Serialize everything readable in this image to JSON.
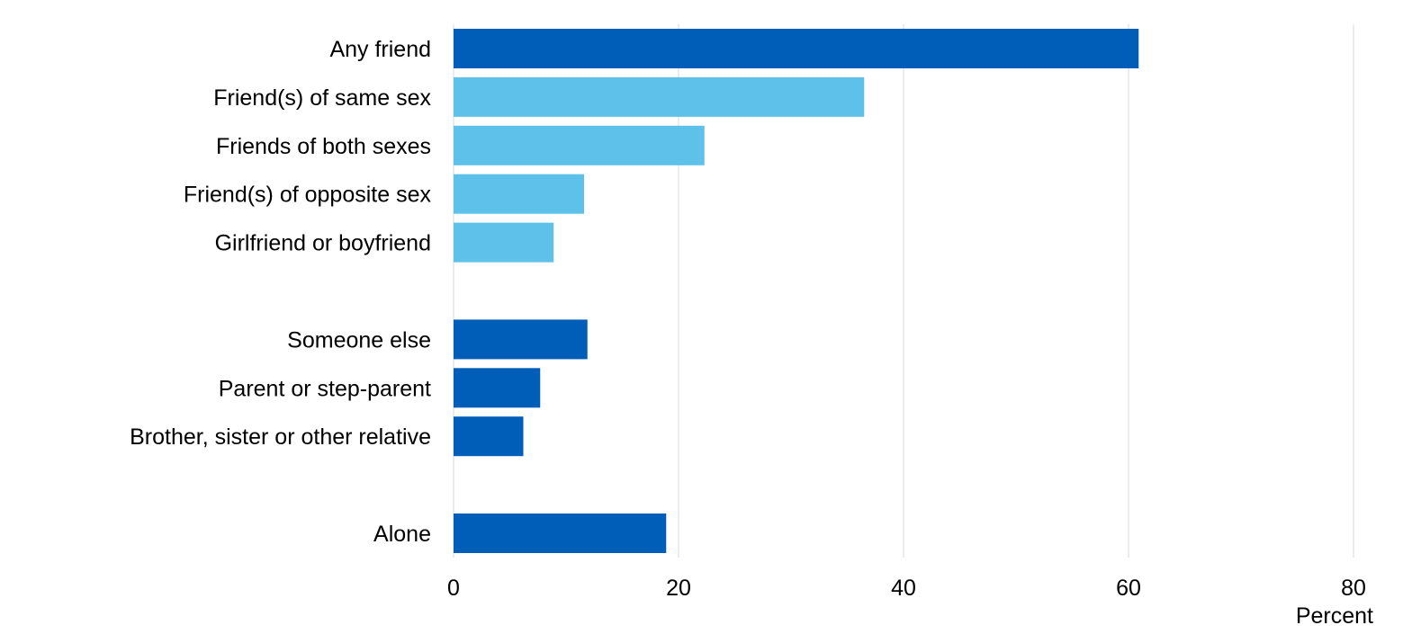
{
  "chart_data": {
    "type": "bar",
    "orientation": "horizontal",
    "categories": [
      "Any friend",
      "Friend(s) of same sex",
      "Friends of both sexes",
      "Friend(s) of opposite sex",
      "Girlfriend or boyfriend",
      "",
      "Someone else",
      "Parent or step-parent",
      "Brother, sister or other relative",
      "",
      "Alone"
    ],
    "values": [
      60.9,
      36.5,
      22.3,
      11.6,
      8.9,
      null,
      11.9,
      7.7,
      6.2,
      null,
      18.9
    ],
    "bar_colors": [
      "#005EB8",
      "#5EC1EA",
      "#5EC1EA",
      "#5EC1EA",
      "#5EC1EA",
      null,
      "#005EB8",
      "#005EB8",
      "#005EB8",
      null,
      "#005EB8"
    ],
    "xlim": [
      0,
      80
    ],
    "xticks": [
      0,
      20,
      40,
      60,
      80
    ],
    "xlabel": "Percent",
    "ylabel": "",
    "title": "",
    "grid": "vertical",
    "legend": "none"
  },
  "colors": {
    "dark_blue": "#005EB8",
    "light_blue": "#5EC1EA",
    "gridline": "#D9D9D9"
  }
}
